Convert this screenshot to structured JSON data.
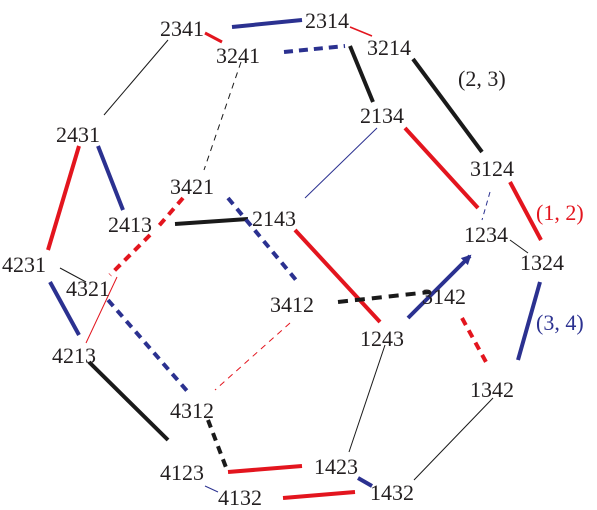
{
  "colors": {
    "red": "#e3151e",
    "blue": "#2b3190",
    "black": "#1a1a1a",
    "label": "#231f20"
  },
  "nodes": {
    "n2341": "2341",
    "n2314": "2314",
    "n3241": "3241",
    "n3214": "3214",
    "n2431": "2431",
    "n2134": "2134",
    "n3421": "3421",
    "n3124": "3124",
    "n2413": "2413",
    "n2143": "2143",
    "n1234": "1234",
    "n1324": "1324",
    "n4231": "4231",
    "n4321": "4321",
    "n3412": "3412",
    "n3142": "3142",
    "n4213": "4213",
    "n1243": "1243",
    "n1342": "1342",
    "n4312": "4312",
    "n4123": "4123",
    "n1423": "1423",
    "n4132": "4132",
    "n1432": "1432"
  },
  "generators": {
    "g23": "(2, 3)",
    "g12": "(1, 2)",
    "g34": "(3, 4)"
  }
}
